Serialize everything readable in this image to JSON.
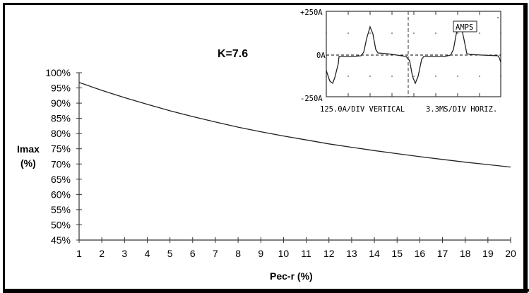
{
  "chart_data": {
    "type": "line",
    "title": "K=7.6",
    "xlabel": "Pec-r (%)",
    "ylabel": "Imax (%)",
    "ylabel_lines": [
      "Imax",
      "(%)"
    ],
    "x_ticks": [
      "1",
      "2",
      "3",
      "4",
      "5",
      "6",
      "7",
      "8",
      "9",
      "10",
      "11",
      "12",
      "13",
      "14",
      "15",
      "16",
      "17",
      "18",
      "19",
      "20"
    ],
    "y_ticks": [
      "45%",
      "50%",
      "55%",
      "60%",
      "65%",
      "70%",
      "75%",
      "80%",
      "85%",
      "90%",
      "95%",
      "100%"
    ],
    "xlim": [
      1,
      20
    ],
    "ylim": [
      45,
      100
    ],
    "grid": false,
    "series": [
      {
        "name": "Imax",
        "x": [
          1,
          2,
          3,
          4,
          5,
          6,
          7,
          8,
          9,
          10,
          11,
          12,
          13,
          14,
          15,
          16,
          17,
          18,
          19,
          20
        ],
        "values": [
          96.8,
          94.2,
          91.8,
          89.6,
          87.5,
          85.6,
          83.8,
          82.1,
          80.6,
          79.2,
          77.9,
          76.6,
          75.5,
          74.4,
          73.4,
          72.4,
          71.5,
          70.6,
          69.8,
          69.0
        ]
      }
    ],
    "inset": {
      "type": "oscilloscope",
      "y_top_label": "+250A",
      "y_mid_label": "0A",
      "y_bottom_label": "-250A",
      "caption_left": "125.0A/DIV VERTICAL",
      "caption_right": "3.3MS/DIV HORIZ.",
      "badge": "AMPS"
    }
  }
}
